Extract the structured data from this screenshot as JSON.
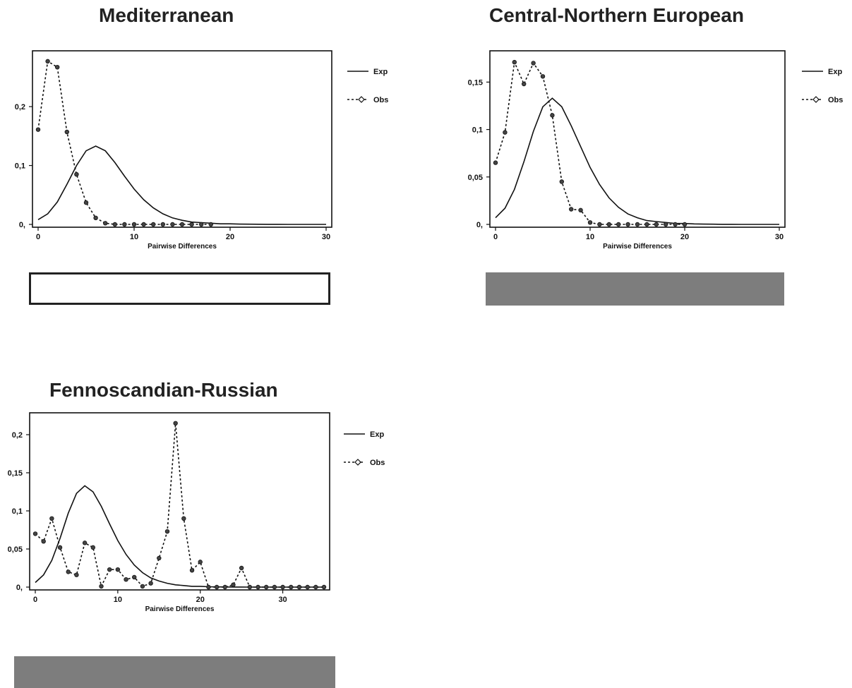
{
  "colors": {
    "line": "#111111",
    "marker": "#444444",
    "swatch_gray": "#7d7d7d",
    "swatch_border": "#222222"
  },
  "chart_data": [
    {
      "type": "line",
      "title": "Mediterranean",
      "xlabel": "Pairwise Differences",
      "ylabel": "",
      "xlim": [
        0,
        30
      ],
      "ylim": [
        0,
        0.29
      ],
      "x_ticks": [
        "0",
        "10",
        "20",
        "30"
      ],
      "y_ticks": [
        "0,",
        "0,1",
        "0,2"
      ],
      "legend": {
        "placement": "right",
        "entries": [
          "Exp",
          "Obs"
        ]
      },
      "series": [
        {
          "name": "Exp",
          "style": "solid",
          "x": [
            0,
            1,
            2,
            3,
            4,
            5,
            6,
            7,
            8,
            9,
            10,
            11,
            12,
            13,
            14,
            15,
            16,
            17,
            18,
            19,
            20,
            21,
            22,
            23,
            24,
            25,
            26,
            27,
            28,
            29,
            30
          ],
          "values": [
            0.008,
            0.018,
            0.038,
            0.068,
            0.1,
            0.125,
            0.133,
            0.125,
            0.105,
            0.082,
            0.06,
            0.042,
            0.028,
            0.018,
            0.011,
            0.007,
            0.004,
            0.003,
            0.002,
            0.001,
            0.001,
            0.0005,
            0.0003,
            0.0002,
            0.0001,
            0.0001,
            0,
            0,
            0,
            0,
            0
          ]
        },
        {
          "name": "Obs",
          "style": "dotted-markers",
          "x": [
            0,
            1,
            2,
            3,
            4,
            5,
            6,
            7,
            8,
            9,
            10,
            11,
            12,
            13,
            14,
            15,
            16,
            17,
            18
          ],
          "values": [
            0.161,
            0.277,
            0.267,
            0.157,
            0.085,
            0.037,
            0.011,
            0.002,
            0,
            0,
            0,
            0,
            0,
            0,
            0,
            0,
            0,
            0,
            0
          ]
        }
      ]
    },
    {
      "type": "line",
      "title": "Central-Northern European",
      "xlabel": "Pairwise Differences",
      "ylabel": "",
      "xlim": [
        0,
        30
      ],
      "ylim": [
        0,
        0.18
      ],
      "x_ticks": [
        "0",
        "10",
        "20",
        "30"
      ],
      "y_ticks": [
        "0,",
        "0,05",
        "0,1",
        "0,15"
      ],
      "legend": {
        "placement": "right",
        "entries": [
          "Exp",
          "Obs"
        ]
      },
      "series": [
        {
          "name": "Exp",
          "style": "solid",
          "x": [
            0,
            1,
            2,
            3,
            4,
            5,
            6,
            7,
            8,
            9,
            10,
            11,
            12,
            13,
            14,
            15,
            16,
            17,
            18,
            19,
            20,
            21,
            22,
            23,
            24,
            25,
            26,
            27,
            28,
            29,
            30
          ],
          "values": [
            0.007,
            0.017,
            0.037,
            0.066,
            0.098,
            0.124,
            0.133,
            0.124,
            0.104,
            0.082,
            0.06,
            0.042,
            0.028,
            0.018,
            0.011,
            0.007,
            0.004,
            0.003,
            0.002,
            0.001,
            0.001,
            0.0005,
            0.0003,
            0.0002,
            0.0001,
            0.0001,
            0,
            0,
            0,
            0,
            0
          ]
        },
        {
          "name": "Obs",
          "style": "dotted-markers",
          "x": [
            0,
            1,
            2,
            3,
            4,
            5,
            6,
            7,
            8,
            9,
            10,
            11,
            12,
            13,
            14,
            15,
            16,
            17,
            18,
            19,
            20
          ],
          "values": [
            0.065,
            0.097,
            0.171,
            0.148,
            0.17,
            0.156,
            0.115,
            0.045,
            0.016,
            0.015,
            0.002,
            0,
            0,
            0,
            0,
            0,
            0,
            0,
            0,
            0,
            0
          ]
        }
      ]
    },
    {
      "type": "line",
      "title": "Fennoscandian-Russian",
      "xlabel": "Pairwise Differences",
      "ylabel": "",
      "xlim": [
        0,
        35
      ],
      "ylim": [
        0,
        0.225
      ],
      "x_ticks": [
        "0",
        "10",
        "20",
        "30"
      ],
      "y_ticks": [
        "0,",
        "0,05",
        "0,1",
        "0,15",
        "0,2"
      ],
      "legend": {
        "placement": "right",
        "entries": [
          "Exp",
          "Obs"
        ]
      },
      "series": [
        {
          "name": "Exp",
          "style": "solid",
          "x": [
            0,
            1,
            2,
            3,
            4,
            5,
            6,
            7,
            8,
            9,
            10,
            11,
            12,
            13,
            14,
            15,
            16,
            17,
            18,
            19,
            20,
            21,
            22,
            23,
            24,
            25,
            26,
            27,
            28,
            29,
            30,
            31,
            32,
            33,
            34,
            35
          ],
          "values": [
            0.006,
            0.016,
            0.035,
            0.064,
            0.097,
            0.123,
            0.133,
            0.125,
            0.106,
            0.083,
            0.061,
            0.043,
            0.029,
            0.019,
            0.012,
            0.008,
            0.005,
            0.003,
            0.002,
            0.001,
            0.001,
            0.0005,
            0.0003,
            0.0002,
            0.0001,
            0.0001,
            0,
            0,
            0,
            0,
            0,
            0,
            0,
            0,
            0,
            0
          ]
        },
        {
          "name": "Obs",
          "style": "dotted-markers",
          "x": [
            0,
            1,
            2,
            3,
            4,
            5,
            6,
            7,
            8,
            9,
            10,
            11,
            12,
            13,
            14,
            15,
            16,
            17,
            18,
            19,
            20,
            21,
            22,
            23,
            24,
            25,
            26,
            27,
            28,
            29,
            30,
            31,
            32,
            33,
            34,
            35
          ],
          "values": [
            0.07,
            0.06,
            0.09,
            0.052,
            0.02,
            0.016,
            0.058,
            0.052,
            0.001,
            0.023,
            0.023,
            0.01,
            0.013,
            0.001,
            0.005,
            0.038,
            0.073,
            0.215,
            0.09,
            0.022,
            0.033,
            0,
            0,
            0,
            0.003,
            0.025,
            0,
            0,
            0,
            0,
            0,
            0,
            0,
            0,
            0,
            0
          ]
        }
      ]
    }
  ]
}
